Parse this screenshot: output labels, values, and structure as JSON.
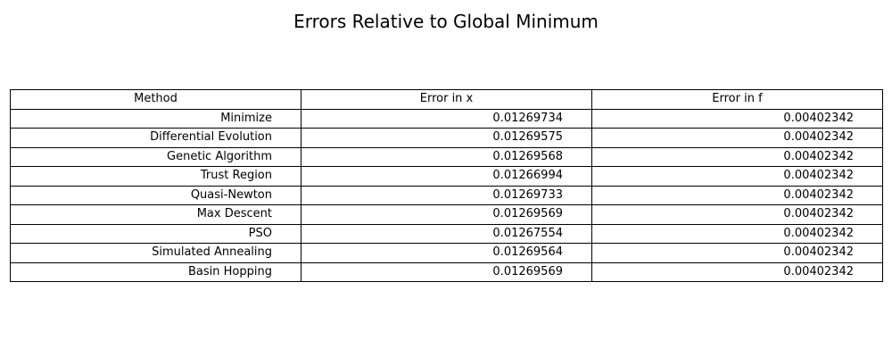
{
  "chart_data": {
    "type": "table",
    "title": "Errors Relative to Global Minimum",
    "columns": [
      "Method",
      "Error in x",
      "Error in f"
    ],
    "rows": [
      [
        "Minimize",
        "0.01269734",
        "0.00402342"
      ],
      [
        "Differential Evolution",
        "0.01269575",
        "0.00402342"
      ],
      [
        "Genetic Algorithm",
        "0.01269568",
        "0.00402342"
      ],
      [
        "Trust Region",
        "0.01266994",
        "0.00402342"
      ],
      [
        "Quasi-Newton",
        "0.01269733",
        "0.00402342"
      ],
      [
        "Max Descent",
        "0.01269569",
        "0.00402342"
      ],
      [
        "PSO",
        "0.01267554",
        "0.00402342"
      ],
      [
        "Simulated Annealing",
        "0.01269564",
        "0.00402342"
      ],
      [
        "Basin Hopping",
        "0.01269569",
        "0.00402342"
      ]
    ]
  }
}
